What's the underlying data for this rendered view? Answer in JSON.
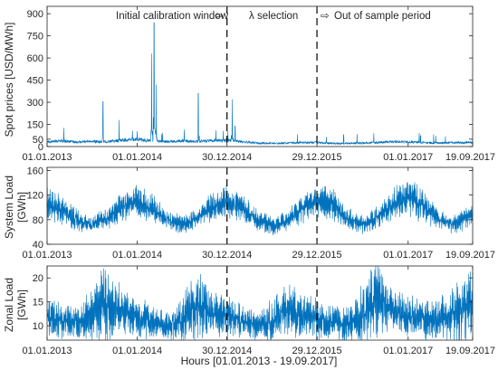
{
  "chart_data": [
    {
      "type": "line",
      "ylabel": "Spot prices [USD/MWh]",
      "ylim": [
        0,
        950
      ],
      "yticks": [
        0,
        50,
        150,
        300,
        450,
        600,
        750,
        900
      ],
      "x_tick_labels": [
        "01.01.2013",
        "01.01.2014",
        "30.12.2014",
        "29.12.2015",
        "01.01.2017",
        "19.09.2017"
      ],
      "x_range": [
        "01.01.2013",
        "19.09.2017"
      ],
      "vlines": [
        "30.12.2014",
        "29.12.2015"
      ],
      "annotations": [
        "Initial calibration window",
        "⇦",
        "λ selection",
        "⇨",
        "Out of sample period"
      ],
      "series": [
        {
          "x": [
            "01.01.2013",
            "01.03.2013",
            "01.05.2013",
            "01.07.2013",
            "01.09.2013",
            "01.11.2013",
            "01.01.2014",
            "01.03.2014",
            "01.05.2014",
            "01.07.2014",
            "01.09.2014",
            "01.11.2014",
            "01.01.2015",
            "01.03.2015",
            "01.05.2015",
            "01.07.2015",
            "01.09.2015",
            "01.11.2015",
            "01.01.2016",
            "01.03.2016",
            "01.05.2016",
            "01.07.2016",
            "01.09.2016",
            "01.11.2016",
            "01.01.2017",
            "01.03.2017",
            "01.05.2017",
            "01.07.2017",
            "01.09.2017"
          ],
          "values": [
            30,
            35,
            28,
            32,
            30,
            40,
            45,
            35,
            30,
            35,
            32,
            38,
            40,
            30,
            22,
            20,
            22,
            25,
            25,
            20,
            20,
            22,
            25,
            30,
            30,
            25,
            22,
            25,
            25
          ],
          "spikes": [
            {
              "x": "15.08.2013",
              "value": 305
            },
            {
              "x": "20.10.2013",
              "value": 180
            },
            {
              "x": "28.02.2014",
              "value": 630
            },
            {
              "x": "10.03.2014",
              "value": 840
            },
            {
              "x": "18.03.2014",
              "value": 420
            },
            {
              "x": "05.09.2014",
              "value": 360
            },
            {
              "x": "15.11.2014",
              "value": 110
            },
            {
              "x": "20.01.2015",
              "value": 320
            },
            {
              "x": "01.02.2015",
              "value": 140
            },
            {
              "x": "15.04.2016",
              "value": 80
            },
            {
              "x": "15.08.2016",
              "value": 90
            },
            {
              "x": "20.02.2017",
              "value": 75
            },
            {
              "x": "01.06.2017",
              "value": 70
            }
          ]
        }
      ]
    },
    {
      "type": "line",
      "ylabel": [
        "System Load",
        "[GWh]"
      ],
      "ylim": [
        40,
        165
      ],
      "yticks": [
        40,
        80,
        120,
        160
      ],
      "x_tick_labels": [
        "01.01.2013",
        "01.01.2014",
        "30.12.2014",
        "29.12.2015",
        "01.01.2017",
        "19.09.2017"
      ],
      "x_range": [
        "01.01.2013",
        "19.09.2017"
      ],
      "vlines": [
        "30.12.2014",
        "29.12.2015"
      ],
      "series": [
        {
          "x": [
            "01.01.2013",
            "01.03.2013",
            "01.05.2013",
            "01.07.2013",
            "01.09.2013",
            "01.11.2013",
            "01.01.2014",
            "01.03.2014",
            "01.05.2014",
            "01.07.2014",
            "01.09.2014",
            "01.11.2014",
            "01.01.2015",
            "01.03.2015",
            "01.05.2015",
            "01.07.2015",
            "01.09.2015",
            "01.11.2015",
            "01.01.2016",
            "01.03.2016",
            "01.05.2016",
            "01.07.2016",
            "01.09.2016",
            "01.11.2016",
            "01.01.2017",
            "01.03.2017",
            "01.05.2017",
            "01.07.2017",
            "01.09.2017"
          ],
          "values": [
            105,
            95,
            80,
            72,
            82,
            100,
            112,
            98,
            80,
            72,
            82,
            100,
            110,
            100,
            80,
            70,
            80,
            98,
            112,
            104,
            82,
            72,
            84,
            104,
            118,
            102,
            82,
            72,
            86
          ],
          "spread": [
            18,
            16,
            12,
            10,
            12,
            16,
            18,
            16,
            12,
            10,
            12,
            16,
            18,
            16,
            12,
            10,
            12,
            16,
            20,
            18,
            12,
            10,
            12,
            18,
            22,
            18,
            12,
            10,
            14
          ]
        }
      ]
    },
    {
      "type": "line",
      "ylabel": [
        "Zonal Load",
        "[GWh]"
      ],
      "ylim": [
        7,
        22.5
      ],
      "yticks": [
        10,
        15,
        20
      ],
      "x_tick_labels": [
        "01.01.2013",
        "01.01.2014",
        "30.12.2014",
        "29.12.2015",
        "01.01.2017",
        "19.09.2017"
      ],
      "x_range": [
        "01.01.2013",
        "19.09.2017"
      ],
      "vlines": [
        "30.12.2014",
        "29.12.2015"
      ],
      "xlabel": "Hours [01.01.2013 - 19.09.2017]",
      "series": [
        {
          "x": [
            "01.01.2013",
            "01.03.2013",
            "01.05.2013",
            "01.07.2013",
            "01.09.2013",
            "01.11.2013",
            "01.01.2014",
            "01.03.2014",
            "01.05.2014",
            "01.07.2014",
            "01.09.2014",
            "01.11.2014",
            "01.01.2015",
            "01.03.2015",
            "01.05.2015",
            "01.07.2015",
            "01.09.2015",
            "01.11.2015",
            "01.01.2016",
            "01.03.2016",
            "01.05.2016",
            "01.07.2016",
            "01.09.2016",
            "01.11.2016",
            "01.01.2017",
            "01.03.2017",
            "01.05.2017",
            "01.07.2017",
            "01.09.2017"
          ],
          "values": [
            12,
            11,
            10.5,
            12,
            15,
            13,
            12,
            11,
            10,
            11.5,
            14,
            12.5,
            12,
            11,
            10,
            11,
            13.5,
            12,
            11.5,
            11,
            10.5,
            12.5,
            16,
            13,
            12,
            11.5,
            11,
            12.5,
            14
          ],
          "spread": [
            3,
            2.5,
            2,
            4,
            6,
            3,
            3,
            2.5,
            2,
            3.5,
            5,
            3,
            3,
            2.5,
            2,
            3,
            4,
            3,
            3,
            2.5,
            2.5,
            4,
            6,
            3,
            3,
            3,
            3,
            4,
            5
          ]
        }
      ]
    }
  ],
  "colors": {
    "series": "#0072bd",
    "axis": "#262626",
    "vline": "#000000"
  }
}
